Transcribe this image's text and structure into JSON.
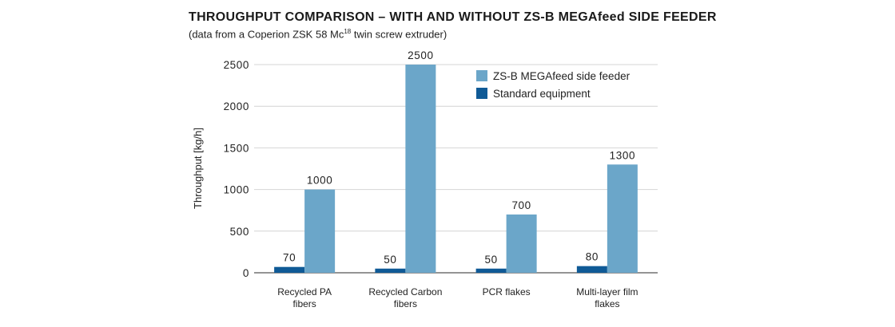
{
  "header": {
    "title": "THROUGHPUT COMPARISON – WITH AND WITHOUT ZS-B MEGAfeed SIDE FEEDER",
    "subtitle_before": "(data from a Coperion ZSK 58 Mc",
    "subtitle_sup": "18",
    "subtitle_after": " twin screw extruder)"
  },
  "chart_data": {
    "type": "bar",
    "categories": [
      [
        "Recycled PA",
        "fibers"
      ],
      [
        "Recycled Carbon",
        "fibers"
      ],
      [
        "PCR flakes"
      ],
      [
        "Multi-layer film",
        "flakes"
      ]
    ],
    "series": [
      {
        "name": "Standard equipment",
        "values": [
          70,
          50,
          50,
          80
        ],
        "color": "#0f5a96"
      },
      {
        "name": "ZS-B MEGAfeed side feeder",
        "values": [
          1000,
          2500,
          700,
          1300
        ],
        "color": "#6ba6c9"
      }
    ],
    "legend_order": [
      1,
      0
    ],
    "ylabel": "Throughput [kg/h]",
    "ylim": [
      0,
      2500
    ],
    "yticks": [
      0,
      500,
      1000,
      1500,
      2000,
      2500
    ],
    "grid": true,
    "legend_position": "top-right"
  }
}
